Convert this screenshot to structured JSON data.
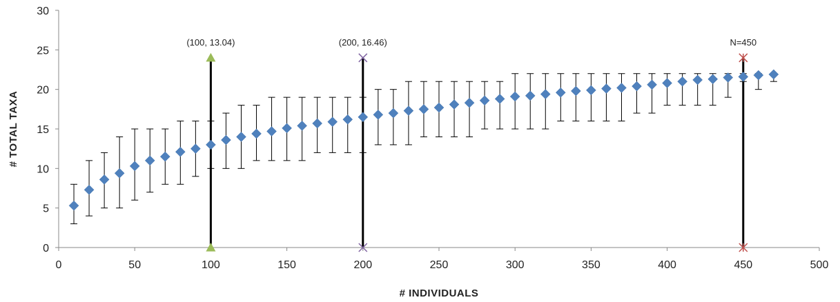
{
  "chart_data": {
    "type": "scatter",
    "title": "",
    "xlabel": "# INDIVIDUALS",
    "ylabel": "# TOTAL TAXA",
    "xlim": [
      0,
      500
    ],
    "ylim": [
      0,
      30
    ],
    "xticks": [
      0,
      50,
      100,
      150,
      200,
      250,
      300,
      350,
      400,
      450,
      500
    ],
    "yticks": [
      0,
      5,
      10,
      15,
      20,
      25,
      30
    ],
    "grid": false,
    "legend": "none",
    "marker_color": "#4f81bd",
    "series": [
      {
        "marker": "diamond",
        "x": [
          10,
          20,
          30,
          40,
          50,
          60,
          70,
          80,
          90,
          100,
          110,
          120,
          130,
          140,
          150,
          160,
          170,
          180,
          190,
          200,
          210,
          220,
          230,
          240,
          250,
          260,
          270,
          280,
          290,
          300,
          310,
          320,
          330,
          340,
          350,
          360,
          370,
          380,
          390,
          400,
          410,
          420,
          430,
          440,
          450,
          460,
          470
        ],
        "y": [
          5.3,
          7.3,
          8.6,
          9.4,
          10.3,
          11.0,
          11.5,
          12.1,
          12.5,
          13.0,
          13.6,
          14.0,
          14.4,
          14.7,
          15.1,
          15.4,
          15.7,
          15.9,
          16.2,
          16.5,
          16.8,
          17.0,
          17.3,
          17.5,
          17.7,
          18.1,
          18.3,
          18.6,
          18.8,
          19.1,
          19.2,
          19.4,
          19.6,
          19.8,
          19.9,
          20.1,
          20.2,
          20.4,
          20.6,
          20.8,
          21.0,
          21.2,
          21.3,
          21.5,
          21.6,
          21.8,
          21.9
        ],
        "y_low": [
          3,
          4,
          5,
          5,
          6,
          7,
          8,
          8,
          9,
          10,
          10,
          10,
          11,
          11,
          11,
          11,
          12,
          12,
          12,
          12,
          13,
          13,
          13,
          14,
          14,
          14,
          14,
          15,
          15,
          15,
          15,
          15,
          16,
          16,
          16,
          16,
          16,
          17,
          17,
          18,
          18,
          18,
          18,
          19,
          21,
          20,
          21
        ],
        "y_high": [
          8,
          11,
          12,
          14,
          15,
          15,
          15,
          16,
          16,
          16,
          17,
          18,
          18,
          19,
          19,
          19,
          19,
          19,
          19,
          19,
          20,
          20,
          21,
          21,
          21,
          21,
          21,
          21,
          21,
          22,
          22,
          22,
          22,
          22,
          22,
          22,
          22,
          22,
          22,
          22,
          22,
          22,
          22,
          22,
          22,
          22,
          22
        ]
      }
    ],
    "reference_lines": [
      {
        "x": 100,
        "y_range": [
          0,
          24
        ],
        "marker": "triangle",
        "marker_color": "#9bbb59",
        "label": "(100, 13.04)"
      },
      {
        "x": 200,
        "y_range": [
          0,
          24
        ],
        "marker": "x",
        "marker_color": "#8064a2",
        "label": "(200, 16.46)"
      },
      {
        "x": 450,
        "y_range": [
          0,
          24
        ],
        "marker": "star",
        "marker_color": "#c0504d",
        "label": "N=450"
      }
    ]
  }
}
